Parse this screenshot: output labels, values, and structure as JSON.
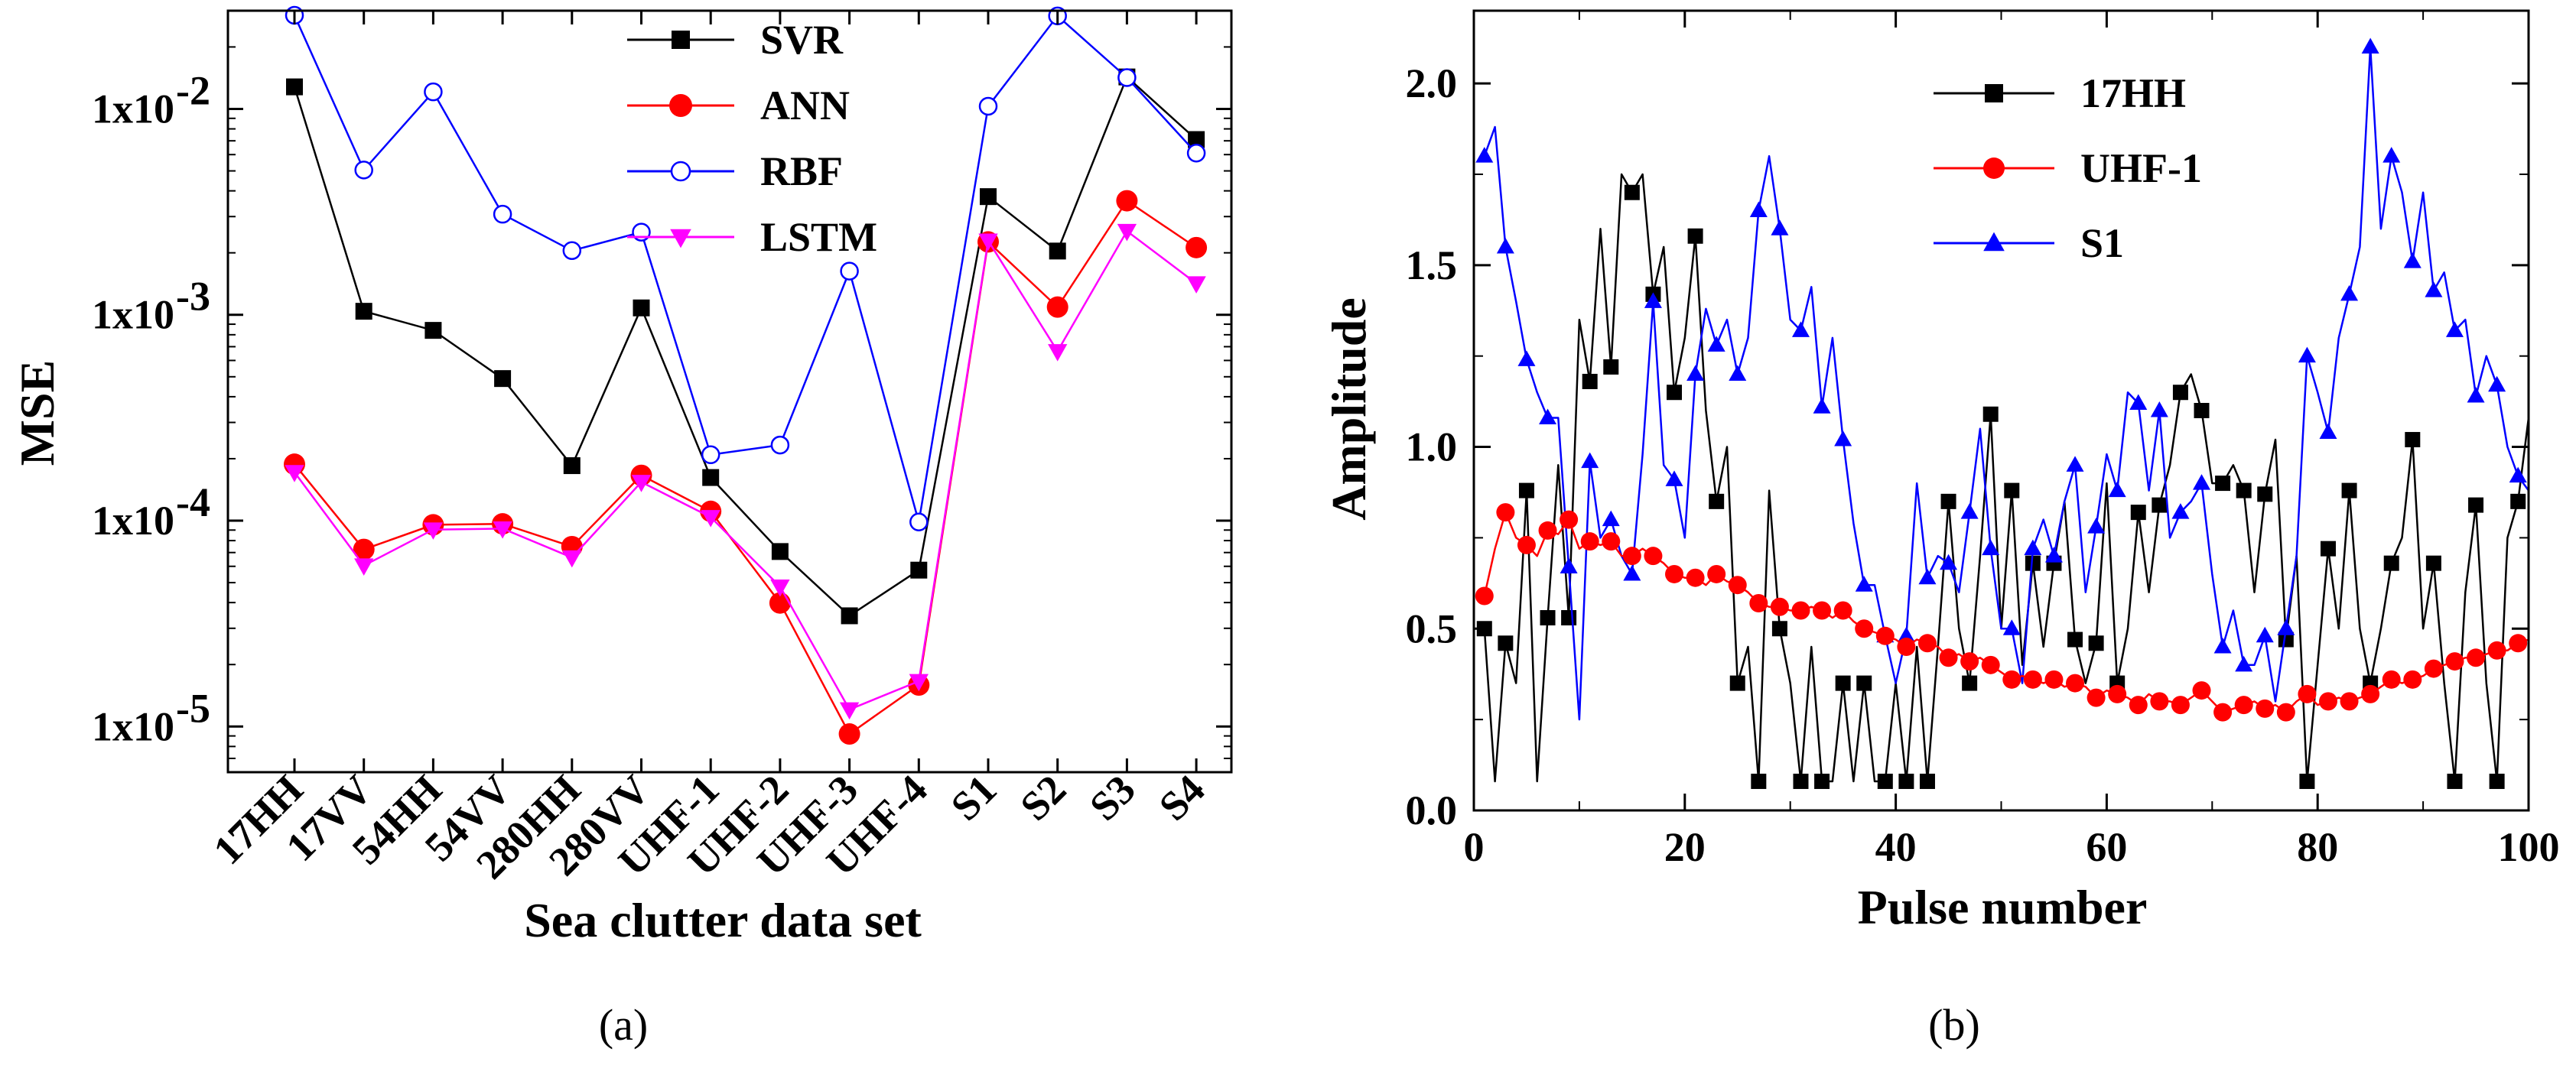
{
  "chart_data": [
    {
      "type": "line",
      "panel_label": "(a)",
      "xlabel": "Sea clutter data set",
      "ylabel": "MSE",
      "yscale": "log",
      "ylim": [
        6e-06,
        0.03
      ],
      "categories": [
        "17HH",
        "17VV",
        "54HH",
        "54VV",
        "280HH",
        "280VV",
        "UHF-1",
        "UHF-2",
        "UHF-3",
        "UHF-4",
        "S1",
        "S2",
        "S3",
        "S4"
      ],
      "yticks": [
        1e-05,
        0.0001,
        0.001,
        0.01
      ],
      "ytick_labels": [
        [
          "1x10",
          "-5"
        ],
        [
          "1x10",
          "-4"
        ],
        [
          "1x10",
          "-3"
        ],
        [
          "1x10",
          "-2"
        ]
      ],
      "series": [
        {
          "name": "SVR",
          "color": "#000000",
          "marker": "square",
          "values": [
            0.0128,
            0.00104,
            0.00084,
            0.00049,
            0.000185,
            0.00108,
            0.000162,
            7.08e-05,
            3.45e-05,
            5.75e-05,
            0.00375,
            0.00204,
            0.0143,
            0.0071
          ]
        },
        {
          "name": "ANN",
          "color": "#ff0000",
          "marker": "circle",
          "values": [
            0.000188,
            7.25e-05,
            9.55e-05,
            9.65e-05,
            7.48e-05,
            0.000166,
            0.000111,
            3.98e-05,
            9.2e-06,
            1.59e-05,
            0.00226,
            0.00109,
            0.00358,
            0.00212
          ]
        },
        {
          "name": "RBF",
          "color": "#0000ff",
          "marker": "open-circle",
          "values": [
            0.0285,
            0.00505,
            0.0121,
            0.00308,
            0.00205,
            0.00252,
            0.000209,
            0.000233,
            0.00163,
            9.85e-05,
            0.0103,
            0.0283,
            0.0142,
            0.0061
          ]
        },
        {
          "name": "LSTM",
          "color": "#ff00ff",
          "marker": "triangle-down",
          "values": [
            0.000172,
            6.05e-05,
            9.05e-05,
            9.15e-05,
            6.62e-05,
            0.000154,
            0.000104,
            4.78e-05,
            1.21e-05,
            1.66e-05,
            0.00229,
            0.000665,
            0.00255,
            0.00142
          ]
        }
      ]
    },
    {
      "type": "line",
      "panel_label": "(b)",
      "xlabel": "Pulse number",
      "ylabel": "Amplitude",
      "xlim": [
        0,
        100
      ],
      "ylim": [
        0,
        2.2
      ],
      "xticks": [
        0,
        20,
        40,
        60,
        80,
        100
      ],
      "xtick_labels": [
        "0",
        "20",
        "40",
        "60",
        "80",
        "100"
      ],
      "yticks": [
        0,
        0.5,
        1.0,
        1.5,
        2.0
      ],
      "ytick_labels": [
        "0.0",
        "0.5",
        "1.0",
        "1.5",
        "2.0"
      ],
      "x_start": 1,
      "marker_every": 2,
      "series": [
        {
          "name": "17HH",
          "color": "#000000",
          "marker": "square",
          "values": [
            0.5,
            0.08,
            0.46,
            0.35,
            0.88,
            0.08,
            0.53,
            0.95,
            0.53,
            1.35,
            1.18,
            1.6,
            1.22,
            1.75,
            1.7,
            1.75,
            1.42,
            1.55,
            1.15,
            1.3,
            1.58,
            1.1,
            0.85,
            1.0,
            0.35,
            0.45,
            0.08,
            0.88,
            0.5,
            0.35,
            0.08,
            0.45,
            0.08,
            0.08,
            0.35,
            0.08,
            0.35,
            0.08,
            0.08,
            0.35,
            0.08,
            0.45,
            0.08,
            0.45,
            0.85,
            0.5,
            0.35,
            0.7,
            1.09,
            0.5,
            0.88,
            0.4,
            0.68,
            0.45,
            0.68,
            0.85,
            0.47,
            0.35,
            0.46,
            0.9,
            0.35,
            0.5,
            0.82,
            0.6,
            0.84,
            0.95,
            1.15,
            1.2,
            1.1,
            0.9,
            0.9,
            0.95,
            0.88,
            0.6,
            0.87,
            1.02,
            0.47,
            0.7,
            0.08,
            0.4,
            0.72,
            0.5,
            0.88,
            0.5,
            0.35,
            0.5,
            0.68,
            0.75,
            1.02,
            0.5,
            0.68,
            0.35,
            0.08,
            0.6,
            0.84,
            0.35,
            0.08,
            0.75,
            0.85,
            1.08
          ]
        },
        {
          "name": "UHF-1",
          "color": "#ff0000",
          "marker": "circle",
          "values": [
            0.59,
            0.72,
            0.82,
            0.75,
            0.73,
            0.7,
            0.77,
            0.76,
            0.8,
            0.72,
            0.74,
            0.73,
            0.74,
            0.7,
            0.7,
            0.72,
            0.7,
            0.68,
            0.65,
            0.64,
            0.64,
            0.62,
            0.65,
            0.63,
            0.62,
            0.6,
            0.57,
            0.56,
            0.56,
            0.55,
            0.55,
            0.56,
            0.55,
            0.53,
            0.55,
            0.52,
            0.5,
            0.49,
            0.48,
            0.47,
            0.45,
            0.47,
            0.46,
            0.45,
            0.42,
            0.43,
            0.41,
            0.42,
            0.4,
            0.38,
            0.36,
            0.37,
            0.36,
            0.35,
            0.36,
            0.34,
            0.35,
            0.34,
            0.31,
            0.33,
            0.32,
            0.31,
            0.29,
            0.32,
            0.3,
            0.3,
            0.29,
            0.31,
            0.33,
            0.3,
            0.27,
            0.28,
            0.29,
            0.3,
            0.28,
            0.29,
            0.27,
            0.3,
            0.32,
            0.29,
            0.3,
            0.31,
            0.3,
            0.31,
            0.32,
            0.34,
            0.36,
            0.35,
            0.36,
            0.37,
            0.39,
            0.4,
            0.41,
            0.42,
            0.42,
            0.43,
            0.44,
            0.44,
            0.46,
            0.47
          ]
        },
        {
          "name": "S1",
          "color": "#0000ff",
          "marker": "triangle",
          "values": [
            1.8,
            1.88,
            1.55,
            1.4,
            1.24,
            1.15,
            1.08,
            1.08,
            0.67,
            0.25,
            0.96,
            0.75,
            0.8,
            0.7,
            0.65,
            0.98,
            1.4,
            0.95,
            0.91,
            0.75,
            1.2,
            1.38,
            1.28,
            1.35,
            1.2,
            1.3,
            1.65,
            1.8,
            1.6,
            1.35,
            1.32,
            1.44,
            1.11,
            1.3,
            1.02,
            0.79,
            0.62,
            0.62,
            0.48,
            0.35,
            0.48,
            0.9,
            0.64,
            0.7,
            0.68,
            0.6,
            0.82,
            1.05,
            0.72,
            0.5,
            0.5,
            0.35,
            0.72,
            0.8,
            0.7,
            0.85,
            0.95,
            0.6,
            0.78,
            0.98,
            0.88,
            1.15,
            1.12,
            0.88,
            1.1,
            0.75,
            0.82,
            0.85,
            0.9,
            0.65,
            0.45,
            0.55,
            0.4,
            0.4,
            0.48,
            0.3,
            0.5,
            0.7,
            1.25,
            1.15,
            1.04,
            1.3,
            1.42,
            1.55,
            2.1,
            1.6,
            1.8,
            1.7,
            1.51,
            1.7,
            1.43,
            1.48,
            1.32,
            1.35,
            1.14,
            1.25,
            1.17,
            1.0,
            0.92,
            0.88
          ]
        }
      ]
    }
  ],
  "legend_a": [
    {
      "label": "SVR"
    },
    {
      "label": "ANN"
    },
    {
      "label": "RBF"
    },
    {
      "label": "LSTM"
    }
  ],
  "legend_b": [
    {
      "label": "17HH"
    },
    {
      "label": "UHF-1"
    },
    {
      "label": "S1"
    }
  ],
  "labels": {
    "a_ylabel": "MSE",
    "a_xlabel": "Sea clutter data set",
    "b_ylabel": "Amplitude",
    "b_xlabel": "Pulse number",
    "panel_a": "(a)",
    "panel_b": "(b)"
  }
}
